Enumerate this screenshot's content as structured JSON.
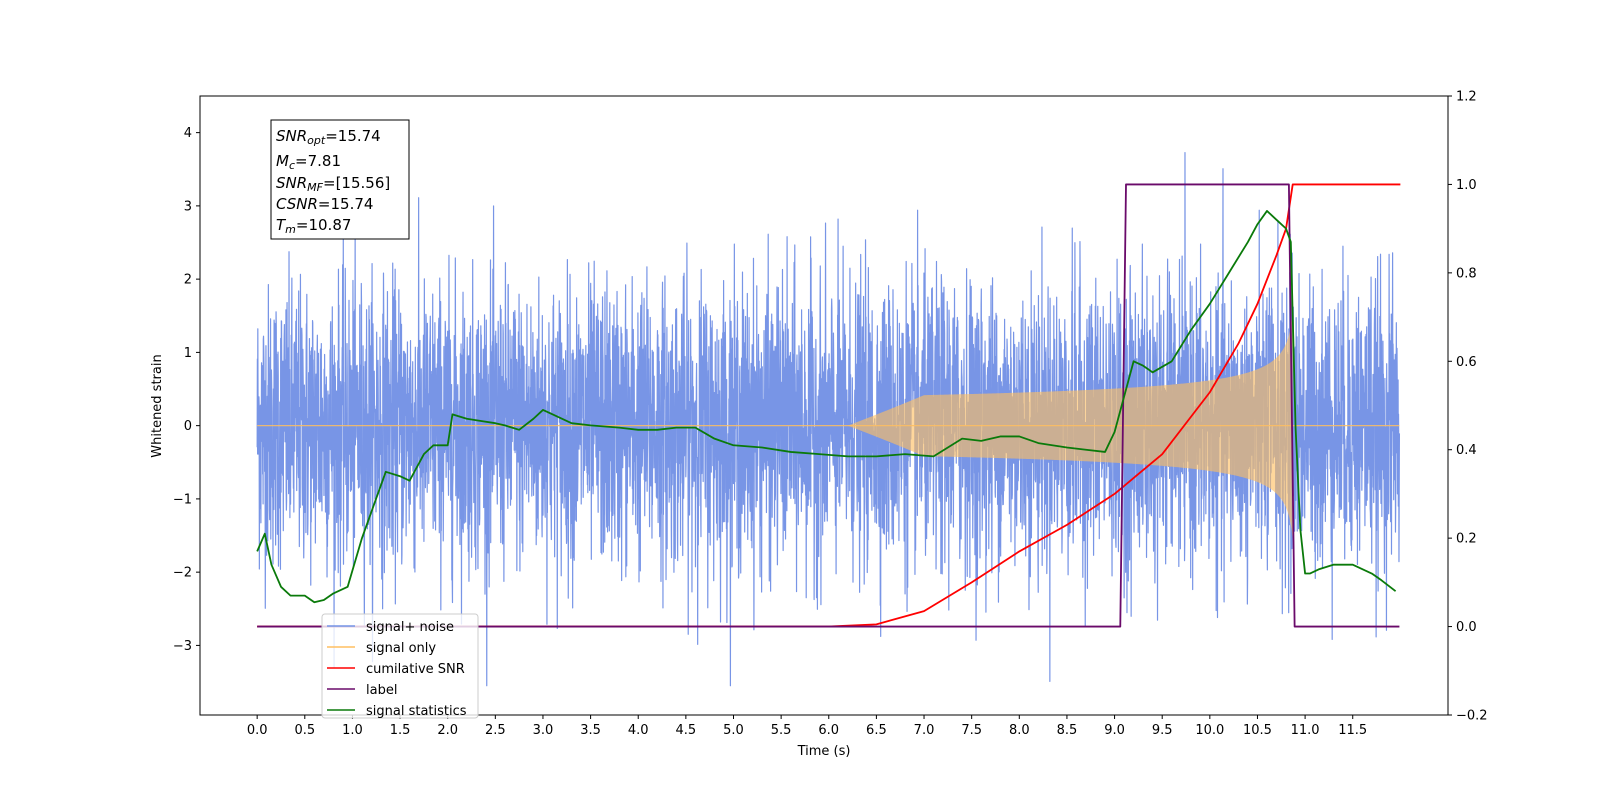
{
  "chart_data": {
    "type": "line",
    "xlabel": "Time (s)",
    "ylabel_left": "Whitened strain",
    "xlim": [
      -0.6,
      12.5
    ],
    "ylim_left": [
      -3.95,
      4.5
    ],
    "ylim_right": [
      -0.2,
      1.2
    ],
    "x_ticks": [
      0.0,
      0.5,
      1.0,
      1.5,
      2.0,
      2.5,
      3.0,
      3.5,
      4.0,
      4.5,
      5.0,
      5.5,
      6.0,
      6.5,
      7.0,
      7.5,
      8.0,
      8.5,
      9.0,
      9.5,
      10.0,
      10.5,
      11.0,
      11.5
    ],
    "x_tick_labels": [
      "0.0",
      "0.5",
      "1.0",
      "1.5",
      "2.0",
      "2.5",
      "3.0",
      "3.5",
      "4.0",
      "4.5",
      "5.0",
      "5.5",
      "6.0",
      "6.5",
      "7.0",
      "7.5",
      "8.0",
      "8.5",
      "9.0",
      "9.5",
      "10.0",
      "10.5",
      "11.0",
      "11.5"
    ],
    "y_left_ticks": [
      -3,
      -2,
      -1,
      0,
      1,
      2,
      3,
      4
    ],
    "y_left_tick_labels": [
      "−3",
      "−2",
      "−1",
      "0",
      "1",
      "2",
      "3",
      "4"
    ],
    "y_right_ticks": [
      -0.2,
      0.0,
      0.2,
      0.4,
      0.6,
      0.8,
      1.0,
      1.2
    ],
    "y_right_tick_labels": [
      "−0.2",
      "0.0",
      "0.2",
      "0.4",
      "0.6",
      "0.8",
      "1.0",
      "1.2"
    ],
    "annotation": {
      "snr_opt": {
        "base": "SNR",
        "sub": "opt",
        "value": "=15.74"
      },
      "mc": {
        "base": "M",
        "sub": "c",
        "value": "=7.81"
      },
      "snr_mf": {
        "base": "SNR",
        "sub": "MF",
        "value": "=[15.56]"
      },
      "csnr": {
        "base": "CSNR",
        "value": "=15.74"
      },
      "tm": {
        "base": "T",
        "sub": "m",
        "value": "=10.87"
      }
    },
    "legend": {
      "position": "lower-left",
      "entries": [
        {
          "label": "signal+ noise",
          "color": "#7593e6"
        },
        {
          "label": "signal only",
          "color": "#ffbf60"
        },
        {
          "label": "cumilative SNR",
          "color": "#ff0000"
        },
        {
          "label": "label",
          "color": "#6a0a6a"
        },
        {
          "label": "signal statistics",
          "color": "#0a7a0a"
        }
      ]
    },
    "series": [
      {
        "name": "signal+ noise",
        "axis": "left",
        "color": "#7593e6",
        "x_range": [
          0.0,
          11.99
        ],
        "band_typical": [
          -2.3,
          2.3
        ],
        "peak_max": 4.1,
        "peak_min": -3.55
      },
      {
        "name": "signal only",
        "axis": "left",
        "color": "#ffbf60",
        "chirp_start": 6.2,
        "chirp_end": 10.87,
        "amplitude_at_end": 1.55
      },
      {
        "name": "cumilative SNR",
        "axis": "right",
        "color": "#ff0000",
        "x": [
          0.0,
          6.0,
          6.5,
          7.0,
          7.5,
          8.0,
          8.5,
          9.0,
          9.5,
          10.0,
          10.3,
          10.5,
          10.7,
          10.8,
          10.87,
          12.0
        ],
        "y": [
          0.0,
          0.0,
          0.005,
          0.035,
          0.1,
          0.17,
          0.23,
          0.3,
          0.39,
          0.53,
          0.64,
          0.73,
          0.84,
          0.9,
          1.0,
          1.0
        ]
      },
      {
        "name": "label",
        "axis": "right",
        "color": "#6a0a6a",
        "x": [
          0.0,
          9.06,
          9.12,
          10.83,
          10.89,
          11.99
        ],
        "y": [
          0.0,
          0.0,
          1.0,
          1.0,
          0.0,
          0.0
        ]
      },
      {
        "name": "signal statistics",
        "axis": "right",
        "color": "#0a7a0a",
        "x": [
          0.0,
          0.08,
          0.15,
          0.25,
          0.35,
          0.5,
          0.6,
          0.7,
          0.8,
          0.95,
          1.1,
          1.25,
          1.35,
          1.5,
          1.6,
          1.75,
          1.85,
          2.0,
          2.05,
          2.2,
          2.35,
          2.5,
          2.6,
          2.75,
          2.9,
          3.0,
          3.1,
          3.3,
          3.5,
          3.8,
          4.0,
          4.2,
          4.4,
          4.6,
          4.8,
          5.0,
          5.3,
          5.6,
          5.9,
          6.2,
          6.5,
          6.8,
          7.1,
          7.4,
          7.6,
          7.8,
          8.0,
          8.2,
          8.5,
          8.7,
          8.9,
          9.0,
          9.1,
          9.2,
          9.3,
          9.4,
          9.6,
          9.8,
          10.0,
          10.2,
          10.4,
          10.5,
          10.6,
          10.7,
          10.8,
          10.85,
          10.9,
          10.95,
          11.0,
          11.05,
          11.15,
          11.3,
          11.5,
          11.7,
          11.8,
          11.95
        ],
        "y": [
          0.17,
          0.21,
          0.14,
          0.09,
          0.07,
          0.07,
          0.055,
          0.06,
          0.075,
          0.09,
          0.2,
          0.29,
          0.35,
          0.34,
          0.33,
          0.39,
          0.41,
          0.41,
          0.48,
          0.47,
          0.465,
          0.46,
          0.455,
          0.445,
          0.47,
          0.49,
          0.48,
          0.46,
          0.455,
          0.45,
          0.445,
          0.445,
          0.45,
          0.45,
          0.425,
          0.41,
          0.405,
          0.395,
          0.39,
          0.385,
          0.385,
          0.39,
          0.385,
          0.425,
          0.42,
          0.43,
          0.43,
          0.415,
          0.405,
          0.4,
          0.395,
          0.44,
          0.52,
          0.6,
          0.59,
          0.575,
          0.6,
          0.67,
          0.73,
          0.8,
          0.87,
          0.91,
          0.94,
          0.92,
          0.9,
          0.87,
          0.45,
          0.22,
          0.12,
          0.12,
          0.13,
          0.14,
          0.14,
          0.12,
          0.105,
          0.08
        ]
      }
    ]
  }
}
